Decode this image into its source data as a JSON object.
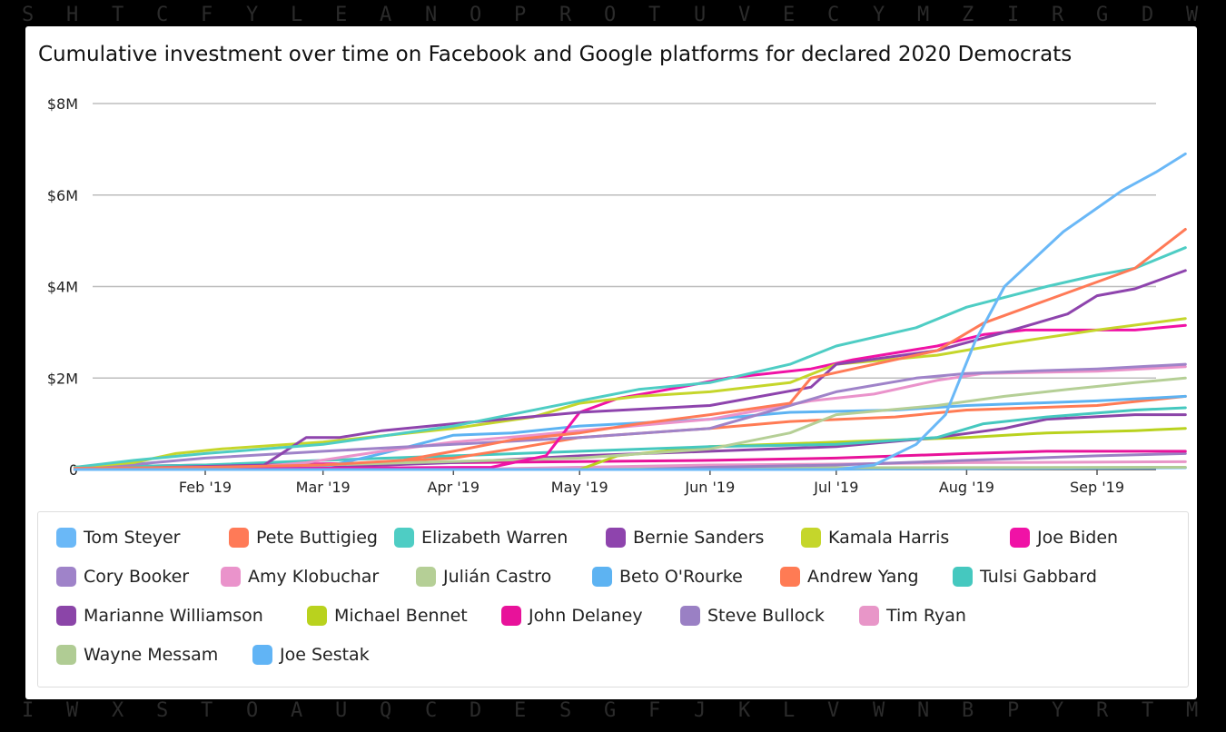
{
  "background_letters": {
    "top": [
      "S",
      "H",
      "T",
      "C",
      "F",
      "Y",
      "L",
      "E",
      "A",
      "N",
      "O",
      "P",
      "R",
      "O",
      "T",
      "U",
      "V",
      "E",
      "C",
      "Y",
      "M",
      "Z",
      "I",
      "R",
      "G",
      "D",
      "W"
    ],
    "bottom": [
      "I",
      "W",
      "X",
      "S",
      "T",
      "O",
      "A",
      "U",
      "Q",
      "C",
      "D",
      "E",
      "S",
      "G",
      "F",
      "J",
      "K",
      "L",
      "V",
      "W",
      "N",
      "B",
      "P",
      "Y",
      "R",
      "T",
      "M"
    ]
  },
  "chart_data": {
    "type": "line",
    "title": "Cumulative investment over time on Facebook and Google platforms for declared 2020 Democrats",
    "xlabel": "",
    "ylabel": "",
    "x_ticks": [
      {
        "date": "2019-02-01",
        "label": "Feb '19"
      },
      {
        "date": "2019-03-01",
        "label": "Mar '19"
      },
      {
        "date": "2019-04-01",
        "label": "Apr '19"
      },
      {
        "date": "2019-05-01",
        "label": "May '19"
      },
      {
        "date": "2019-06-01",
        "label": "Jun '19"
      },
      {
        "date": "2019-07-01",
        "label": "Jul '19"
      },
      {
        "date": "2019-08-01",
        "label": "Aug '19"
      },
      {
        "date": "2019-09-01",
        "label": "Sep '19"
      }
    ],
    "xlim": [
      "2019-01-01",
      "2019-09-15"
    ],
    "y_ticks": [
      {
        "value": 0,
        "label": "0"
      },
      {
        "value": 2,
        "label": "$2M"
      },
      {
        "value": 4,
        "label": "$4M"
      },
      {
        "value": 6,
        "label": "$6M"
      },
      {
        "value": 8,
        "label": "$8M"
      }
    ],
    "y_unit": "millions of USD",
    "ylim": [
      0,
      8
    ],
    "grid": true,
    "legend_position": "bottom",
    "series": [
      {
        "name": "Tom Steyer",
        "color": "#6ab8f7",
        "points": [
          [
            "2019-07-01",
            0
          ],
          [
            "2019-07-10",
            0.1
          ],
          [
            "2019-07-20",
            0.55
          ],
          [
            "2019-07-27",
            1.2
          ],
          [
            "2019-08-03",
            2.8
          ],
          [
            "2019-08-10",
            4.0
          ],
          [
            "2019-08-17",
            4.6
          ],
          [
            "2019-08-24",
            5.2
          ],
          [
            "2019-08-31",
            5.65
          ],
          [
            "2019-09-07",
            6.1
          ],
          [
            "2019-09-15",
            6.5
          ],
          [
            "2019-09-22",
            6.9
          ]
        ]
      },
      {
        "name": "Pete Buttigieg",
        "color": "#ff7a57",
        "points": [
          [
            "2019-01-01",
            0.03
          ],
          [
            "2019-02-01",
            0.05
          ],
          [
            "2019-03-01",
            0.1
          ],
          [
            "2019-03-20",
            0.2
          ],
          [
            "2019-04-01",
            0.4
          ],
          [
            "2019-04-15",
            0.65
          ],
          [
            "2019-05-01",
            0.8
          ],
          [
            "2019-05-15",
            1.0
          ],
          [
            "2019-06-01",
            1.2
          ],
          [
            "2019-06-20",
            1.45
          ],
          [
            "2019-06-25",
            2.0
          ],
          [
            "2019-07-05",
            2.2
          ],
          [
            "2019-07-25",
            2.6
          ],
          [
            "2019-08-05",
            3.2
          ],
          [
            "2019-08-20",
            3.7
          ],
          [
            "2019-09-01",
            4.1
          ],
          [
            "2019-09-10",
            4.4
          ],
          [
            "2019-09-22",
            5.25
          ]
        ]
      },
      {
        "name": "Elizabeth Warren",
        "color": "#4ecdc4",
        "points": [
          [
            "2019-01-01",
            0.05
          ],
          [
            "2019-01-15",
            0.2
          ],
          [
            "2019-02-01",
            0.35
          ],
          [
            "2019-03-01",
            0.55
          ],
          [
            "2019-04-01",
            0.95
          ],
          [
            "2019-05-01",
            1.5
          ],
          [
            "2019-05-15",
            1.75
          ],
          [
            "2019-06-01",
            1.9
          ],
          [
            "2019-06-20",
            2.3
          ],
          [
            "2019-07-01",
            2.7
          ],
          [
            "2019-07-20",
            3.1
          ],
          [
            "2019-08-01",
            3.55
          ],
          [
            "2019-08-20",
            4.0
          ],
          [
            "2019-09-01",
            4.25
          ],
          [
            "2019-09-10",
            4.4
          ],
          [
            "2019-09-22",
            4.85
          ]
        ]
      },
      {
        "name": "Bernie Sanders",
        "color": "#8e44ad",
        "points": [
          [
            "2019-01-01",
            0
          ],
          [
            "2019-02-15",
            0.1
          ],
          [
            "2019-02-25",
            0.7
          ],
          [
            "2019-03-05",
            0.7
          ],
          [
            "2019-03-15",
            0.85
          ],
          [
            "2019-04-01",
            1.0
          ],
          [
            "2019-05-01",
            1.25
          ],
          [
            "2019-06-01",
            1.4
          ],
          [
            "2019-06-25",
            1.8
          ],
          [
            "2019-07-01",
            2.3
          ],
          [
            "2019-07-25",
            2.6
          ],
          [
            "2019-08-10",
            3.0
          ],
          [
            "2019-08-25",
            3.4
          ],
          [
            "2019-09-01",
            3.8
          ],
          [
            "2019-09-10",
            3.95
          ],
          [
            "2019-09-22",
            4.35
          ]
        ]
      },
      {
        "name": "Kamala Harris",
        "color": "#c5d62b",
        "points": [
          [
            "2019-01-01",
            0.05
          ],
          [
            "2019-01-15",
            0.15
          ],
          [
            "2019-01-25",
            0.35
          ],
          [
            "2019-02-05",
            0.45
          ],
          [
            "2019-03-01",
            0.6
          ],
          [
            "2019-04-01",
            0.9
          ],
          [
            "2019-04-20",
            1.15
          ],
          [
            "2019-05-01",
            1.45
          ],
          [
            "2019-05-15",
            1.6
          ],
          [
            "2019-06-01",
            1.7
          ],
          [
            "2019-06-20",
            1.9
          ],
          [
            "2019-07-01",
            2.3
          ],
          [
            "2019-07-25",
            2.5
          ],
          [
            "2019-08-10",
            2.75
          ],
          [
            "2019-09-01",
            3.05
          ],
          [
            "2019-09-22",
            3.3
          ]
        ]
      },
      {
        "name": "Joe Biden",
        "color": "#f012a6",
        "points": [
          [
            "2019-04-10",
            0.05
          ],
          [
            "2019-04-23",
            0.3
          ],
          [
            "2019-05-01",
            1.25
          ],
          [
            "2019-05-10",
            1.55
          ],
          [
            "2019-05-25",
            1.8
          ],
          [
            "2019-06-05",
            2.0
          ],
          [
            "2019-06-25",
            2.2
          ],
          [
            "2019-07-05",
            2.4
          ],
          [
            "2019-07-25",
            2.7
          ],
          [
            "2019-08-05",
            2.95
          ],
          [
            "2019-08-15",
            3.05
          ],
          [
            "2019-09-10",
            3.05
          ],
          [
            "2019-09-22",
            3.15
          ]
        ]
      },
      {
        "name": "Cory Booker",
        "color": "#9f83c9",
        "points": [
          [
            "2019-01-01",
            0
          ],
          [
            "2019-02-01",
            0.25
          ],
          [
            "2019-03-01",
            0.4
          ],
          [
            "2019-04-01",
            0.55
          ],
          [
            "2019-05-01",
            0.7
          ],
          [
            "2019-06-01",
            0.9
          ],
          [
            "2019-06-20",
            1.4
          ],
          [
            "2019-07-01",
            1.7
          ],
          [
            "2019-07-20",
            2.0
          ],
          [
            "2019-08-01",
            2.1
          ],
          [
            "2019-08-15",
            2.15
          ],
          [
            "2019-09-01",
            2.2
          ],
          [
            "2019-09-22",
            2.3
          ]
        ]
      },
      {
        "name": "Amy Klobuchar",
        "color": "#ea93cb",
        "points": [
          [
            "2019-02-05",
            0
          ],
          [
            "2019-02-25",
            0.15
          ],
          [
            "2019-03-15",
            0.4
          ],
          [
            "2019-04-01",
            0.6
          ],
          [
            "2019-04-20",
            0.75
          ],
          [
            "2019-05-01",
            0.85
          ],
          [
            "2019-06-01",
            1.1
          ],
          [
            "2019-06-25",
            1.5
          ],
          [
            "2019-07-10",
            1.65
          ],
          [
            "2019-07-25",
            1.95
          ],
          [
            "2019-08-05",
            2.1
          ],
          [
            "2019-09-01",
            2.15
          ],
          [
            "2019-09-22",
            2.25
          ]
        ]
      },
      {
        "name": "Julián Castro",
        "color": "#b5cf96",
        "points": [
          [
            "2019-01-01",
            0
          ],
          [
            "2019-03-01",
            0.1
          ],
          [
            "2019-05-01",
            0.25
          ],
          [
            "2019-06-01",
            0.45
          ],
          [
            "2019-06-20",
            0.8
          ],
          [
            "2019-07-01",
            1.2
          ],
          [
            "2019-07-25",
            1.4
          ],
          [
            "2019-08-10",
            1.6
          ],
          [
            "2019-08-25",
            1.75
          ],
          [
            "2019-09-10",
            1.9
          ],
          [
            "2019-09-22",
            2.0
          ]
        ]
      },
      {
        "name": "Beto O'Rourke",
        "color": "#5db3f2",
        "points": [
          [
            "2019-03-01",
            0.05
          ],
          [
            "2019-03-15",
            0.35
          ],
          [
            "2019-04-01",
            0.75
          ],
          [
            "2019-04-15",
            0.8
          ],
          [
            "2019-05-01",
            0.95
          ],
          [
            "2019-06-01",
            1.1
          ],
          [
            "2019-06-20",
            1.25
          ],
          [
            "2019-07-15",
            1.3
          ],
          [
            "2019-08-01",
            1.4
          ],
          [
            "2019-09-01",
            1.5
          ],
          [
            "2019-09-22",
            1.6
          ]
        ]
      },
      {
        "name": "Andrew Yang",
        "color": "#ff7b54",
        "points": [
          [
            "2019-01-01",
            0
          ],
          [
            "2019-02-01",
            0.05
          ],
          [
            "2019-03-01",
            0.1
          ],
          [
            "2019-04-01",
            0.25
          ],
          [
            "2019-04-15",
            0.45
          ],
          [
            "2019-05-01",
            0.7
          ],
          [
            "2019-06-01",
            0.9
          ],
          [
            "2019-06-20",
            1.05
          ],
          [
            "2019-07-15",
            1.15
          ],
          [
            "2019-08-01",
            1.3
          ],
          [
            "2019-09-01",
            1.4
          ],
          [
            "2019-09-22",
            1.6
          ]
        ]
      },
      {
        "name": "Tulsi Gabbard",
        "color": "#45c8bf",
        "points": [
          [
            "2019-01-01",
            0.05
          ],
          [
            "2019-02-01",
            0.1
          ],
          [
            "2019-03-01",
            0.2
          ],
          [
            "2019-04-01",
            0.3
          ],
          [
            "2019-05-01",
            0.4
          ],
          [
            "2019-06-01",
            0.5
          ],
          [
            "2019-07-01",
            0.55
          ],
          [
            "2019-07-25",
            0.7
          ],
          [
            "2019-08-05",
            1.0
          ],
          [
            "2019-08-20",
            1.15
          ],
          [
            "2019-09-10",
            1.3
          ],
          [
            "2019-09-22",
            1.35
          ]
        ]
      },
      {
        "name": "Marianne Williamson",
        "color": "#8b45a8",
        "points": [
          [
            "2019-01-01",
            0
          ],
          [
            "2019-03-01",
            0.05
          ],
          [
            "2019-04-01",
            0.15
          ],
          [
            "2019-05-01",
            0.3
          ],
          [
            "2019-06-01",
            0.4
          ],
          [
            "2019-07-01",
            0.5
          ],
          [
            "2019-07-25",
            0.7
          ],
          [
            "2019-08-10",
            0.9
          ],
          [
            "2019-08-20",
            1.1
          ],
          [
            "2019-09-10",
            1.2
          ],
          [
            "2019-09-22",
            1.2
          ]
        ]
      },
      {
        "name": "Michael Bennet",
        "color": "#b9d21e",
        "points": [
          [
            "2019-05-01",
            0
          ],
          [
            "2019-05-10",
            0.3
          ],
          [
            "2019-06-01",
            0.5
          ],
          [
            "2019-07-01",
            0.6
          ],
          [
            "2019-08-01",
            0.7
          ],
          [
            "2019-08-20",
            0.8
          ],
          [
            "2019-09-10",
            0.85
          ],
          [
            "2019-09-22",
            0.9
          ]
        ]
      },
      {
        "name": "John Delaney",
        "color": "#e8129a",
        "points": [
          [
            "2019-01-01",
            0.05
          ],
          [
            "2019-02-01",
            0.1
          ],
          [
            "2019-04-01",
            0.15
          ],
          [
            "2019-06-01",
            0.2
          ],
          [
            "2019-07-01",
            0.25
          ],
          [
            "2019-08-01",
            0.35
          ],
          [
            "2019-08-20",
            0.4
          ],
          [
            "2019-09-22",
            0.4
          ]
        ]
      },
      {
        "name": "Steve Bullock",
        "color": "#9a80c4",
        "points": [
          [
            "2019-05-15",
            0
          ],
          [
            "2019-06-01",
            0.05
          ],
          [
            "2019-07-01",
            0.1
          ],
          [
            "2019-08-01",
            0.2
          ],
          [
            "2019-09-01",
            0.3
          ],
          [
            "2019-09-22",
            0.35
          ]
        ]
      },
      {
        "name": "Tim Ryan",
        "color": "#e896c8",
        "points": [
          [
            "2019-04-01",
            0
          ],
          [
            "2019-05-01",
            0.05
          ],
          [
            "2019-06-01",
            0.1
          ],
          [
            "2019-07-01",
            0.12
          ],
          [
            "2019-08-01",
            0.15
          ],
          [
            "2019-09-22",
            0.17
          ]
        ]
      },
      {
        "name": "Wayne Messam",
        "color": "#b0cc94",
        "points": [
          [
            "2019-03-25",
            0
          ],
          [
            "2019-05-01",
            0.02
          ],
          [
            "2019-07-01",
            0.04
          ],
          [
            "2019-09-22",
            0.05
          ]
        ]
      },
      {
        "name": "Joe Sestak",
        "color": "#61b4f5",
        "points": [
          [
            "2019-06-20",
            0
          ],
          [
            "2019-08-01",
            0.02
          ],
          [
            "2019-09-22",
            0.04
          ]
        ]
      }
    ]
  }
}
